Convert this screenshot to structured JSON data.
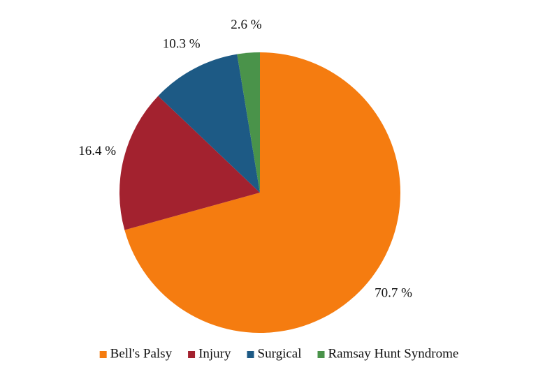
{
  "chart_data": {
    "type": "pie",
    "categories": [
      "Bell's Palsy",
      "Injury",
      "Surgical",
      "Ramsay Hunt Syndrome"
    ],
    "values": [
      70.7,
      16.4,
      10.3,
      2.6
    ],
    "value_labels": [
      "70.7 %",
      "16.4 %",
      "10.3 %",
      "2.6 %"
    ],
    "colors": [
      "#f57c10",
      "#a3222f",
      "#1d5a85",
      "#4a934a"
    ],
    "legend": "bottom"
  }
}
